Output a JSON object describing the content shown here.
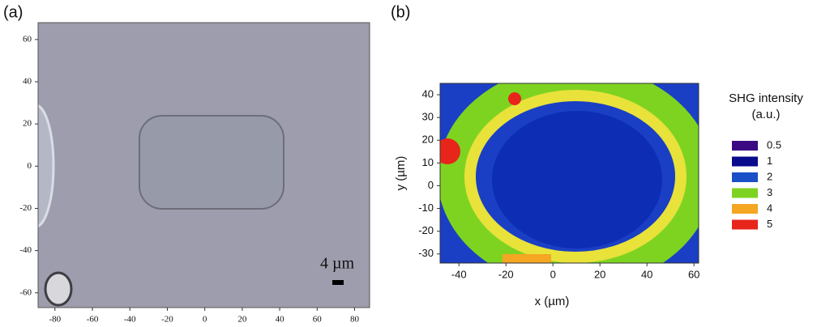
{
  "chart_data": [
    {
      "type": "image",
      "panel_label": "(a)",
      "xlim": [
        -89,
        88
      ],
      "ylim": [
        -67,
        68
      ],
      "xticks": [
        -80,
        -60,
        -40,
        -20,
        0,
        20,
        40,
        60,
        80
      ],
      "yticks": [
        -60,
        -40,
        -20,
        0,
        20,
        40,
        60
      ],
      "scale_bar_label": "4 µm"
    },
    {
      "type": "heatmap",
      "panel_label": "(b)",
      "xlabel": "x (µm)",
      "ylabel": "y (µm)",
      "xlim": [
        -48,
        62
      ],
      "ylim": [
        -34,
        45
      ],
      "xticks": [
        -40,
        -20,
        0,
        20,
        40,
        60
      ],
      "yticks": [
        -30,
        -20,
        -10,
        0,
        10,
        20,
        30,
        40
      ],
      "legend_title": [
        "SHG intensity",
        "(a.u.)"
      ],
      "colorscale": [
        {
          "value": 0.5,
          "color": "#3b0a82"
        },
        {
          "value": 1,
          "color": "#0a0a8c"
        },
        {
          "value": 2,
          "color": "#1a4fc8"
        },
        {
          "value": 3,
          "color": "#7ed321"
        },
        {
          "value": 4,
          "color": "#f5a623"
        },
        {
          "value": 5,
          "color": "#e8251b"
        }
      ]
    }
  ]
}
